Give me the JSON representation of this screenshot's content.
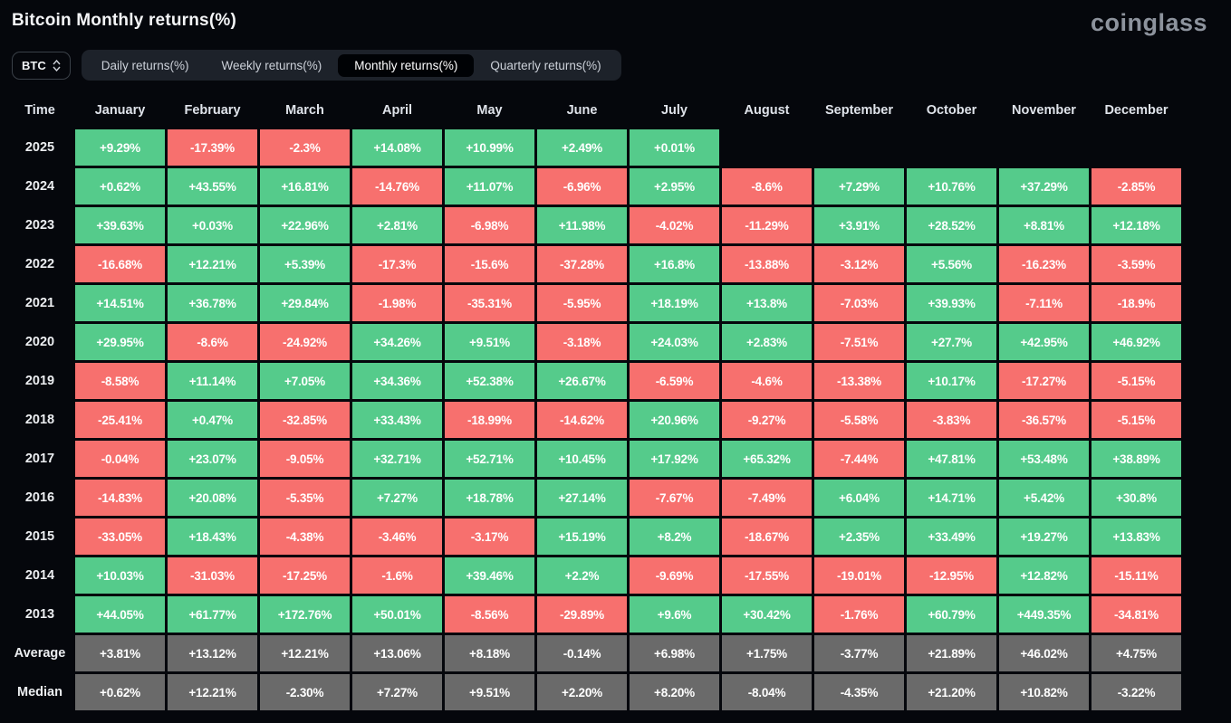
{
  "header": {
    "title": "Bitcoin Monthly returns(%)",
    "logo": "coinglass"
  },
  "controls": {
    "coin_selector": {
      "value": "BTC"
    },
    "tabs": [
      {
        "label": "Daily returns(%)",
        "active": false
      },
      {
        "label": "Weekly returns(%)",
        "active": false
      },
      {
        "label": "Monthly returns(%)",
        "active": true
      },
      {
        "label": "Quarterly returns(%)",
        "active": false
      }
    ]
  },
  "colors": {
    "positive": "#55cb8b",
    "negative": "#f7706e",
    "aggregate": "#6a6a6a",
    "background": "#05070c"
  },
  "table": {
    "columns": [
      "Time",
      "January",
      "February",
      "March",
      "April",
      "May",
      "June",
      "July",
      "August",
      "September",
      "October",
      "November",
      "December"
    ],
    "rows": [
      {
        "label": "2025",
        "values": [
          "+9.29%",
          "-17.39%",
          "-2.3%",
          "+14.08%",
          "+10.99%",
          "+2.49%",
          "+0.01%",
          "",
          "",
          "",
          "",
          ""
        ],
        "types": [
          "p",
          "n",
          "n",
          "p",
          "p",
          "p",
          "p",
          "e",
          "e",
          "e",
          "e",
          "e"
        ]
      },
      {
        "label": "2024",
        "values": [
          "+0.62%",
          "+43.55%",
          "+16.81%",
          "-14.76%",
          "+11.07%",
          "-6.96%",
          "+2.95%",
          "-8.6%",
          "+7.29%",
          "+10.76%",
          "+37.29%",
          "-2.85%"
        ],
        "types": [
          "p",
          "p",
          "p",
          "n",
          "p",
          "n",
          "p",
          "n",
          "p",
          "p",
          "p",
          "n"
        ]
      },
      {
        "label": "2023",
        "values": [
          "+39.63%",
          "+0.03%",
          "+22.96%",
          "+2.81%",
          "-6.98%",
          "+11.98%",
          "-4.02%",
          "-11.29%",
          "+3.91%",
          "+28.52%",
          "+8.81%",
          "+12.18%"
        ],
        "types": [
          "p",
          "p",
          "p",
          "p",
          "n",
          "p",
          "n",
          "n",
          "p",
          "p",
          "p",
          "p"
        ]
      },
      {
        "label": "2022",
        "values": [
          "-16.68%",
          "+12.21%",
          "+5.39%",
          "-17.3%",
          "-15.6%",
          "-37.28%",
          "+16.8%",
          "-13.88%",
          "-3.12%",
          "+5.56%",
          "-16.23%",
          "-3.59%"
        ],
        "types": [
          "n",
          "p",
          "p",
          "n",
          "n",
          "n",
          "p",
          "n",
          "n",
          "p",
          "n",
          "n"
        ]
      },
      {
        "label": "2021",
        "values": [
          "+14.51%",
          "+36.78%",
          "+29.84%",
          "-1.98%",
          "-35.31%",
          "-5.95%",
          "+18.19%",
          "+13.8%",
          "-7.03%",
          "+39.93%",
          "-7.11%",
          "-18.9%"
        ],
        "types": [
          "p",
          "p",
          "p",
          "n",
          "n",
          "n",
          "p",
          "p",
          "n",
          "p",
          "n",
          "n"
        ]
      },
      {
        "label": "2020",
        "values": [
          "+29.95%",
          "-8.6%",
          "-24.92%",
          "+34.26%",
          "+9.51%",
          "-3.18%",
          "+24.03%",
          "+2.83%",
          "-7.51%",
          "+27.7%",
          "+42.95%",
          "+46.92%"
        ],
        "types": [
          "p",
          "n",
          "n",
          "p",
          "p",
          "n",
          "p",
          "p",
          "n",
          "p",
          "p",
          "p"
        ]
      },
      {
        "label": "2019",
        "values": [
          "-8.58%",
          "+11.14%",
          "+7.05%",
          "+34.36%",
          "+52.38%",
          "+26.67%",
          "-6.59%",
          "-4.6%",
          "-13.38%",
          "+10.17%",
          "-17.27%",
          "-5.15%"
        ],
        "types": [
          "n",
          "p",
          "p",
          "p",
          "p",
          "p",
          "n",
          "n",
          "n",
          "p",
          "n",
          "n"
        ]
      },
      {
        "label": "2018",
        "values": [
          "-25.41%",
          "+0.47%",
          "-32.85%",
          "+33.43%",
          "-18.99%",
          "-14.62%",
          "+20.96%",
          "-9.27%",
          "-5.58%",
          "-3.83%",
          "-36.57%",
          "-5.15%"
        ],
        "types": [
          "n",
          "p",
          "n",
          "p",
          "n",
          "n",
          "p",
          "n",
          "n",
          "n",
          "n",
          "n"
        ]
      },
      {
        "label": "2017",
        "values": [
          "-0.04%",
          "+23.07%",
          "-9.05%",
          "+32.71%",
          "+52.71%",
          "+10.45%",
          "+17.92%",
          "+65.32%",
          "-7.44%",
          "+47.81%",
          "+53.48%",
          "+38.89%"
        ],
        "types": [
          "n",
          "p",
          "n",
          "p",
          "p",
          "p",
          "p",
          "p",
          "n",
          "p",
          "p",
          "p"
        ]
      },
      {
        "label": "2016",
        "values": [
          "-14.83%",
          "+20.08%",
          "-5.35%",
          "+7.27%",
          "+18.78%",
          "+27.14%",
          "-7.67%",
          "-7.49%",
          "+6.04%",
          "+14.71%",
          "+5.42%",
          "+30.8%"
        ],
        "types": [
          "n",
          "p",
          "n",
          "p",
          "p",
          "p",
          "n",
          "n",
          "p",
          "p",
          "p",
          "p"
        ]
      },
      {
        "label": "2015",
        "values": [
          "-33.05%",
          "+18.43%",
          "-4.38%",
          "-3.46%",
          "-3.17%",
          "+15.19%",
          "+8.2%",
          "-18.67%",
          "+2.35%",
          "+33.49%",
          "+19.27%",
          "+13.83%"
        ],
        "types": [
          "n",
          "p",
          "n",
          "n",
          "n",
          "p",
          "p",
          "n",
          "p",
          "p",
          "p",
          "p"
        ]
      },
      {
        "label": "2014",
        "values": [
          "+10.03%",
          "-31.03%",
          "-17.25%",
          "-1.6%",
          "+39.46%",
          "+2.2%",
          "-9.69%",
          "-17.55%",
          "-19.01%",
          "-12.95%",
          "+12.82%",
          "-15.11%"
        ],
        "types": [
          "p",
          "n",
          "n",
          "n",
          "p",
          "p",
          "n",
          "n",
          "n",
          "n",
          "p",
          "n"
        ]
      },
      {
        "label": "2013",
        "values": [
          "+44.05%",
          "+61.77%",
          "+172.76%",
          "+50.01%",
          "-8.56%",
          "-29.89%",
          "+9.6%",
          "+30.42%",
          "-1.76%",
          "+60.79%",
          "+449.35%",
          "-34.81%"
        ],
        "types": [
          "p",
          "p",
          "p",
          "p",
          "n",
          "n",
          "p",
          "p",
          "n",
          "p",
          "p",
          "n"
        ]
      },
      {
        "label": "Average",
        "values": [
          "+3.81%",
          "+13.12%",
          "+12.21%",
          "+13.06%",
          "+8.18%",
          "-0.14%",
          "+6.98%",
          "+1.75%",
          "-3.77%",
          "+21.89%",
          "+46.02%",
          "+4.75%"
        ],
        "types": [
          "a",
          "a",
          "a",
          "a",
          "a",
          "a",
          "a",
          "a",
          "a",
          "a",
          "a",
          "a"
        ]
      },
      {
        "label": "Median",
        "values": [
          "+0.62%",
          "+12.21%",
          "-2.30%",
          "+7.27%",
          "+9.51%",
          "+2.20%",
          "+8.20%",
          "-8.04%",
          "-4.35%",
          "+21.20%",
          "+10.82%",
          "-3.22%"
        ],
        "types": [
          "a",
          "a",
          "a",
          "a",
          "a",
          "a",
          "a",
          "a",
          "a",
          "a",
          "a",
          "a"
        ]
      }
    ]
  }
}
